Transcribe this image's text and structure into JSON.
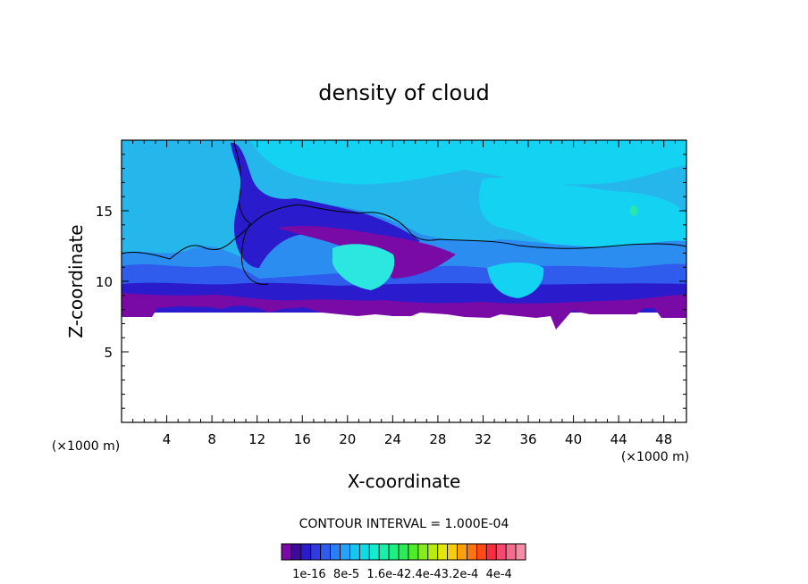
{
  "chart_data": {
    "type": "heatmap",
    "title": "density of cloud",
    "xlabel": "X-coordinate",
    "ylabel": "Z-coordinate",
    "x_unit_left": "(×1000 m)",
    "x_unit_right": "(×1000 m)",
    "xlim": [
      0,
      50
    ],
    "ylim": [
      0,
      20
    ],
    "x_ticks": [
      4,
      8,
      12,
      16,
      20,
      24,
      28,
      32,
      36,
      40,
      44,
      48
    ],
    "y_ticks": [
      5,
      10,
      15
    ],
    "contour_interval": "CONTOUR INTERVAL = 1.000E-04",
    "colorbar": {
      "labels": [
        "1e-16",
        "8e-5",
        "1.6e-4",
        "2.4e-4",
        "3.2e-4",
        "4e-4"
      ],
      "label_text": "1e-16  8e-5  1.6e-42.4e-43.2e-4  4e-4",
      "colors": [
        "#7a0aa6",
        "#3e0a9c",
        "#2a1ccc",
        "#2f3adf",
        "#2f5cec",
        "#2c7ef4",
        "#26a2f6",
        "#17c4f2",
        "#13dbe6",
        "#14ecd0",
        "#17f0aa",
        "#1cf083",
        "#2aec56",
        "#4fec2c",
        "#86ec1c",
        "#b6ec12",
        "#e4e60e",
        "#f8cc0e",
        "#fca00e",
        "#fc7410",
        "#fc4a18",
        "#f82e40",
        "#f4486e",
        "#f46c8e",
        "#f48ea6"
      ]
    },
    "field_colors": {
      "upper_sky": "#25b7ec",
      "light_cyan": "#14d3f2",
      "mid_blue": "#2b8df0",
      "blue": "#2f5cec",
      "dark_blue": "#2a1ccc",
      "purple": "#7a0aa6",
      "pale_cyan": "#2ce6e0"
    }
  }
}
